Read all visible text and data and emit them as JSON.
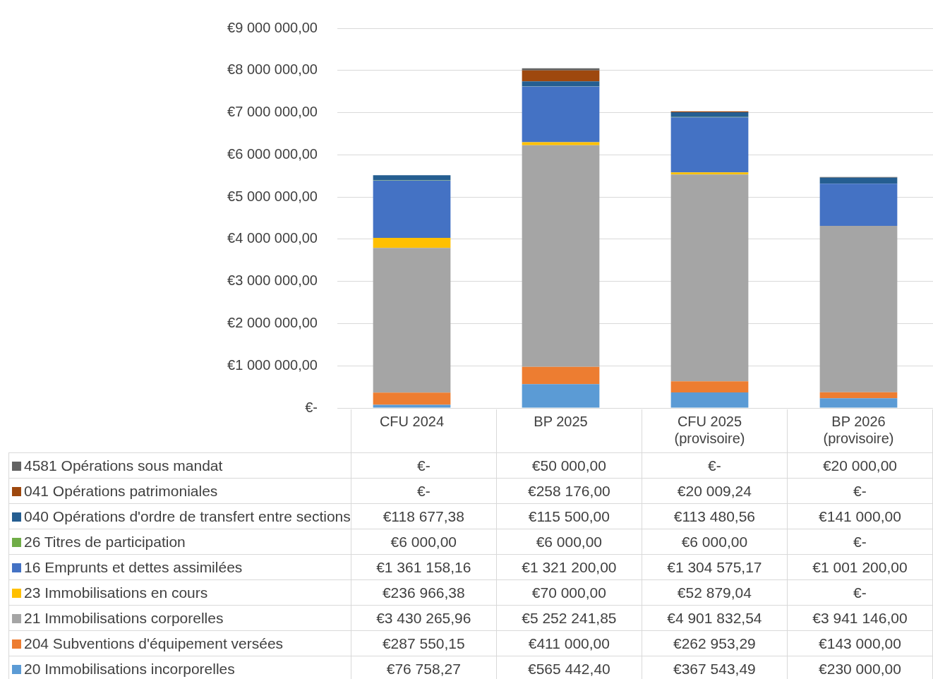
{
  "chart_data": {
    "type": "bar",
    "stacked": true,
    "grid": "y",
    "legend": "bottom",
    "categories": [
      "CFU 2024",
      "BP 2025",
      "CFU 2025 (provisoire)",
      "BP 2026 (provisoire)"
    ],
    "ylim": [
      0,
      9000000
    ],
    "yticks": [
      {
        "value": 0,
        "label": "€-"
      },
      {
        "value": 1000000,
        "label": "€1 000 000,00"
      },
      {
        "value": 2000000,
        "label": "€2 000 000,00"
      },
      {
        "value": 3000000,
        "label": "€3 000 000,00"
      },
      {
        "value": 4000000,
        "label": "€4 000 000,00"
      },
      {
        "value": 5000000,
        "label": "€5 000 000,00"
      },
      {
        "value": 6000000,
        "label": "€6 000 000,00"
      },
      {
        "value": 7000000,
        "label": "€7 000 000,00"
      },
      {
        "value": 8000000,
        "label": "€8 000 000,00"
      },
      {
        "value": 9000000,
        "label": "€9 000 000,00"
      }
    ],
    "series": [
      {
        "name": "20 Immobilisations incorporelles",
        "color": "#5b9bd5",
        "values": [
          76758.27,
          565442.4,
          367543.49,
          230000.0
        ],
        "value_labels": [
          "€76 758,27",
          "€565 442,40",
          "€367 543,49",
          "€230 000,00"
        ]
      },
      {
        "name": "204 Subventions d'équipement versées",
        "color": "#ed7d31",
        "values": [
          287550.15,
          411000.0,
          262953.29,
          143000.0
        ],
        "value_labels": [
          "€287 550,15",
          "€411 000,00",
          "€262 953,29",
          "€143 000,00"
        ]
      },
      {
        "name": "21 Immobilisations corporelles",
        "color": "#a5a5a5",
        "values": [
          3430265.96,
          5252241.85,
          4901832.54,
          3941146.0
        ],
        "value_labels": [
          "€3 430 265,96",
          "€5 252 241,85",
          "€4 901 832,54",
          "€3 941 146,00"
        ]
      },
      {
        "name": "23 Immobilisations en cours",
        "color": "#ffc000",
        "values": [
          236966.38,
          70000.0,
          52879.04,
          0
        ],
        "value_labels": [
          "€236 966,38",
          "€70 000,00",
          "€52 879,04",
          "€-"
        ]
      },
      {
        "name": "16 Emprunts et dettes assimilées",
        "color": "#4472c4",
        "values": [
          1361158.16,
          1321200.0,
          1304575.17,
          1001200.0
        ],
        "value_labels": [
          "€1 361 158,16",
          "€1 321 200,00",
          "€1 304 575,17",
          "€1 001 200,00"
        ]
      },
      {
        "name": "26 Titres de participation",
        "color": "#70ad47",
        "values": [
          6000.0,
          6000.0,
          6000.0,
          0
        ],
        "value_labels": [
          "€6 000,00",
          "€6 000,00",
          "€6 000,00",
          "€-"
        ]
      },
      {
        "name": "040 Opérations d'ordre de transfert entre sections",
        "color": "#255e91",
        "values": [
          118677.38,
          115500.0,
          113480.56,
          141000.0
        ],
        "value_labels": [
          "€118 677,38",
          "€115 500,00",
          "€113 480,56",
          "€141 000,00"
        ]
      },
      {
        "name": "041 Opérations patrimoniales",
        "color": "#9e480e",
        "values": [
          0,
          258176.0,
          20009.24,
          0
        ],
        "value_labels": [
          "€-",
          "€258 176,00",
          "€20 009,24",
          "€-"
        ]
      },
      {
        "name": "4581 Opérations sous mandat",
        "color": "#636363",
        "values": [
          0,
          50000.0,
          0,
          20000.0
        ],
        "value_labels": [
          "€-",
          "€50 000,00",
          "€-",
          "€20 000,00"
        ]
      }
    ]
  }
}
